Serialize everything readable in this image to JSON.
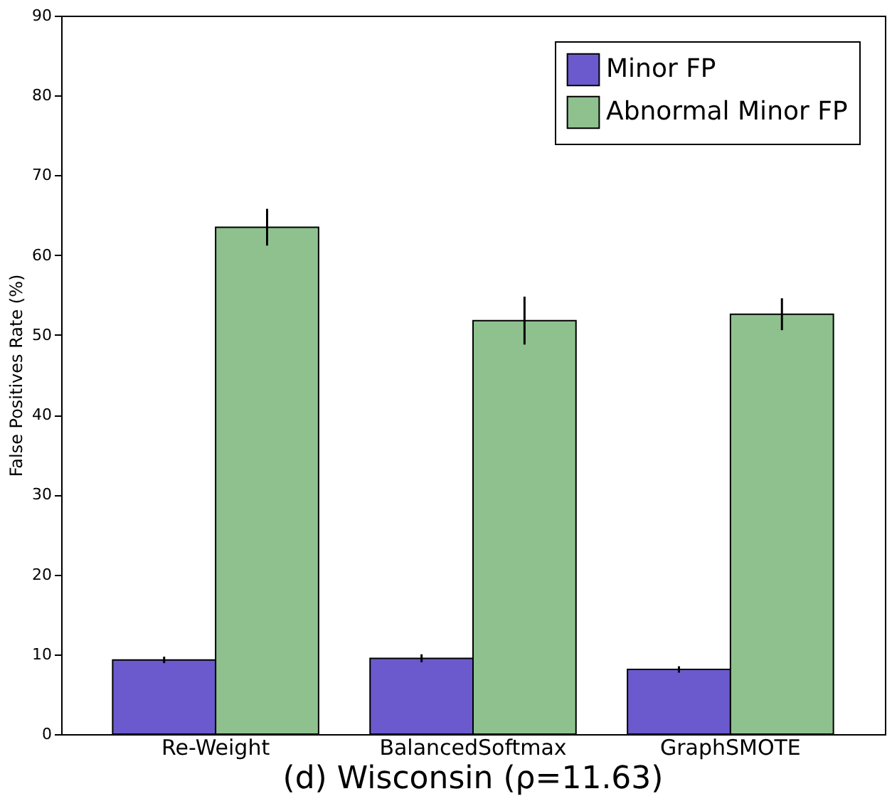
{
  "chart_data": {
    "type": "bar",
    "title": "(d) Wisconsin (ρ=11.63)",
    "ylabel": "False Positives Rate (%)",
    "categories": [
      "Re-Weight",
      "BalancedSoftmax",
      "GraphSMOTE"
    ],
    "series": [
      {
        "name": "Minor FP",
        "color": "#6a5acd",
        "values": [
          9.3,
          9.5,
          8.1
        ],
        "errors": [
          0.4,
          0.5,
          0.4
        ]
      },
      {
        "name": "Abnormal Minor FP",
        "color": "#8fc18f",
        "values": [
          63.5,
          51.8,
          52.6
        ],
        "errors": [
          2.3,
          3.0,
          2.0
        ]
      }
    ],
    "ylim": [
      0,
      90
    ],
    "yticks": [
      0,
      10,
      20,
      30,
      40,
      50,
      60,
      70,
      80,
      90
    ],
    "grid": false,
    "legend": "top right"
  }
}
